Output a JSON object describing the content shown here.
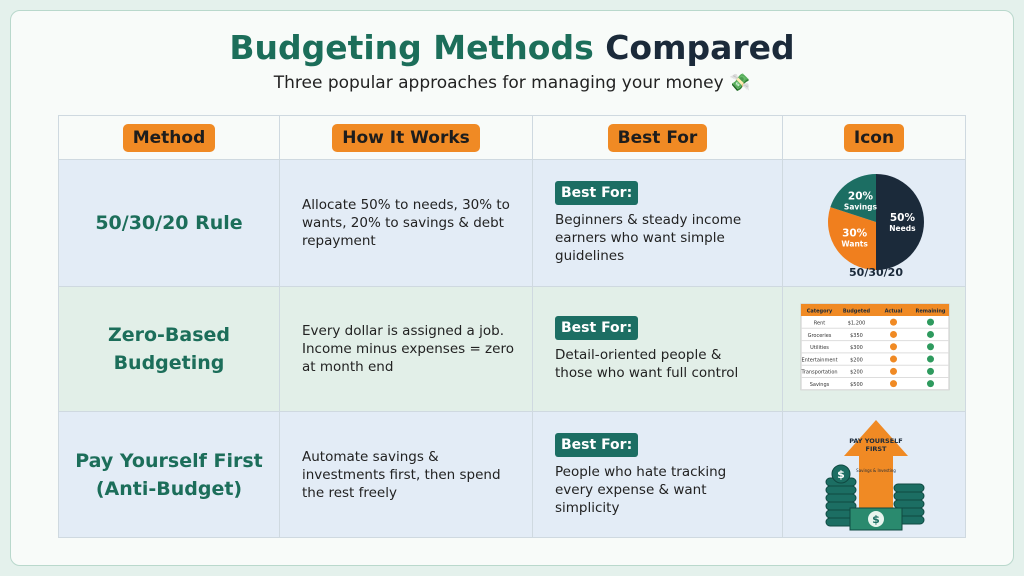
{
  "header": {
    "title_part1": "Budgeting Methods",
    "title_part2": "Compared",
    "subtitle": "Three popular approaches for managing your money 💸"
  },
  "table": {
    "columns": [
      "Method",
      "How It Works",
      "Best For",
      "Icon"
    ],
    "rows": [
      {
        "method": "50/30/20 Rule",
        "how": "Allocate 50% to needs, 30% to wants, 20% to savings & debt repayment",
        "best_for_label": "Best For:",
        "best_for": "Beginners & steady income earners who want simple guidelines"
      },
      {
        "method": "Zero-Based Budgeting",
        "how": "Every dollar is assigned a job. Income minus expenses = zero at month end",
        "best_for_label": "Best For:",
        "best_for": "Detail-oriented people & those who want full control"
      },
      {
        "method": "Pay Yourself First (Anti-Budget)",
        "how": "Automate savings & investments first, then spend the rest freely",
        "best_for_label": "Best For:",
        "best_for": "People who hate tracking every expense & want simplicity"
      }
    ]
  },
  "icons": {
    "pie": {
      "values": [
        50,
        30,
        20
      ],
      "value_labels": [
        "50%",
        "30%",
        "20%"
      ],
      "names": [
        "Needs",
        "Wants",
        "Savings"
      ],
      "colors": [
        "#1b2a3a",
        "#f07f1e",
        "#1c6e63"
      ],
      "caption": "50/30/20"
    },
    "budget_table": {
      "columns": [
        "Category",
        "Budgeted",
        "Actual",
        "Remaining"
      ],
      "rows": [
        [
          "Rent",
          "$1,200"
        ],
        [
          "Groceries",
          "$350"
        ],
        [
          "Utilities",
          "$300"
        ],
        [
          "Entertainment",
          "$200"
        ],
        [
          "Transportation",
          "$200"
        ],
        [
          "Savings",
          "$500"
        ]
      ]
    },
    "pay_first": {
      "arrow_text": "PAY YOURSELF FIRST",
      "arrow_subtext": "Savings & Investing"
    }
  }
}
